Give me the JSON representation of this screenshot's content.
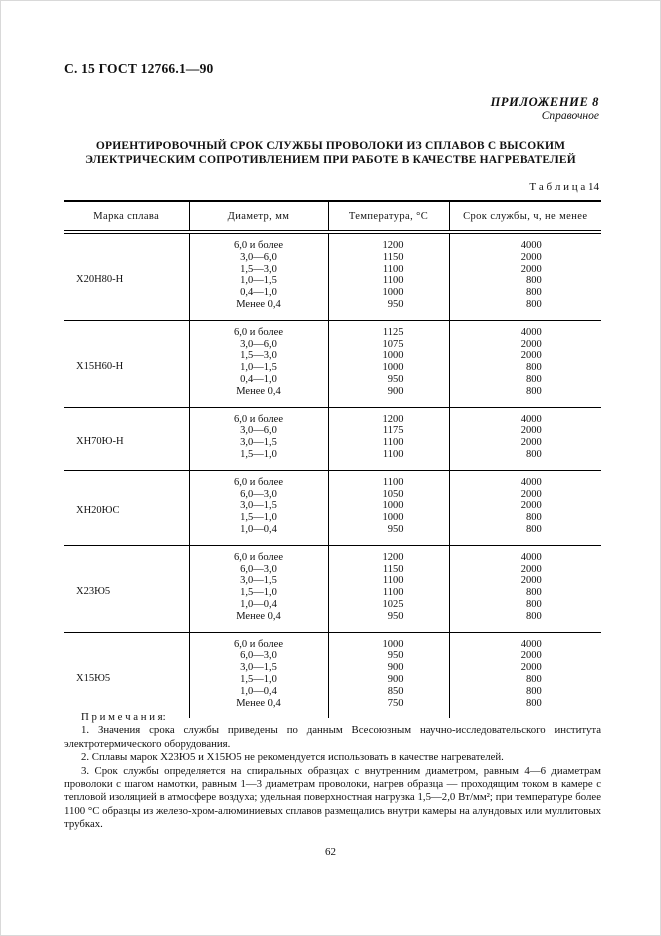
{
  "page": {
    "header": "С. 15 ГОСТ 12766.1—90",
    "appendix_label": "ПРИЛОЖЕНИЕ 8",
    "appendix_sub": "Справочное",
    "title": "ОРИЕНТИРОВОЧНЫЙ СРОК СЛУЖБЫ ПРОВОЛОКИ ИЗ СПЛАВОВ С ВЫСОКИМ\nЭЛЕКТРИЧЕСКИМ СОПРОТИВЛЕНИЕМ ПРИ РАБОТЕ В КАЧЕСТВЕ НАГРЕВАТЕЛЕЙ",
    "table_caption": "Т а б л и ц а 14",
    "page_number": "62"
  },
  "table": {
    "columns": [
      "Марка сплава",
      "Диаметр, мм",
      "Температура, °С",
      "Срок службы, ч, не менее"
    ],
    "groups": [
      {
        "alloy": "Х20Н80-Н",
        "rows": [
          [
            "6,0 и более",
            "1200",
            "4000"
          ],
          [
            "3,0—6,0",
            "1150",
            "2000"
          ],
          [
            "1,5—3,0",
            "1100",
            "2000"
          ],
          [
            "1,0—1,5",
            "1100",
            "800"
          ],
          [
            "0,4—1,0",
            "1000",
            "800"
          ],
          [
            "Менее 0,4",
            "950",
            "800"
          ]
        ]
      },
      {
        "alloy": "Х15Н60-Н",
        "rows": [
          [
            "6,0 и более",
            "1125",
            "4000"
          ],
          [
            "3,0—6,0",
            "1075",
            "2000"
          ],
          [
            "1,5—3,0",
            "1000",
            "2000"
          ],
          [
            "1,0—1,5",
            "1000",
            "800"
          ],
          [
            "0,4—1,0",
            "950",
            "800"
          ],
          [
            "Менее 0,4",
            "900",
            "800"
          ]
        ]
      },
      {
        "alloy": "ХН70Ю-Н",
        "rows": [
          [
            "6,0 и более",
            "1200",
            "4000"
          ],
          [
            "3,0—6,0",
            "1175",
            "2000"
          ],
          [
            "3,0—1,5",
            "1100",
            "2000"
          ],
          [
            "1,5—1,0",
            "1100",
            "800"
          ]
        ]
      },
      {
        "alloy": "ХН20ЮС",
        "rows": [
          [
            "6,0 и более",
            "1100",
            "4000"
          ],
          [
            "6,0—3,0",
            "1050",
            "2000"
          ],
          [
            "3,0—1,5",
            "1000",
            "2000"
          ],
          [
            "1,5—1,0",
            "1000",
            "800"
          ],
          [
            "1,0—0,4",
            "950",
            "800"
          ]
        ]
      },
      {
        "alloy": "Х23Ю5",
        "rows": [
          [
            "6,0 и более",
            "1200",
            "4000"
          ],
          [
            "6,0—3,0",
            "1150",
            "2000"
          ],
          [
            "3,0—1,5",
            "1100",
            "2000"
          ],
          [
            "1,5—1,0",
            "1100",
            "800"
          ],
          [
            "1,0—0,4",
            "1025",
            "800"
          ],
          [
            "Менее 0,4",
            "950",
            "800"
          ]
        ]
      },
      {
        "alloy": "Х15Ю5",
        "rows": [
          [
            "6,0 и более",
            "1000",
            "4000"
          ],
          [
            "6,0—3,0",
            "950",
            "2000"
          ],
          [
            "3,0—1,5",
            "900",
            "2000"
          ],
          [
            "1,5—1,0",
            "900",
            "800"
          ],
          [
            "1,0—0,4",
            "850",
            "800"
          ],
          [
            "Менее 0,4",
            "750",
            "800"
          ]
        ]
      }
    ]
  },
  "notes": {
    "heading": "П р и м е ч а н и я:",
    "items": [
      "1. Значения срока службы приведены по данным Всесоюзным научно-исследовательского института электротермического оборудования.",
      "2. Сплавы марок Х23Ю5 и Х15Ю5 не рекомендуется использовать в качестве нагревателей.",
      "3. Срок службы определяется на спиральных образцах с внутренним диаметром, равным 4—6 диаметрам проволоки с шагом намотки, равным 1—3 диаметрам проволоки, нагрев образца — проходящим током в камере с тепловой изоляцией в атмосфере воздуха; удельная поверхностная нагрузка 1,5—2,0 Вт/мм²; при температуре более 1100 °С образцы из железо-хром-алюминиевых сплавов размещались внутри камеры на алундовых или муллитовых трубках."
    ]
  }
}
